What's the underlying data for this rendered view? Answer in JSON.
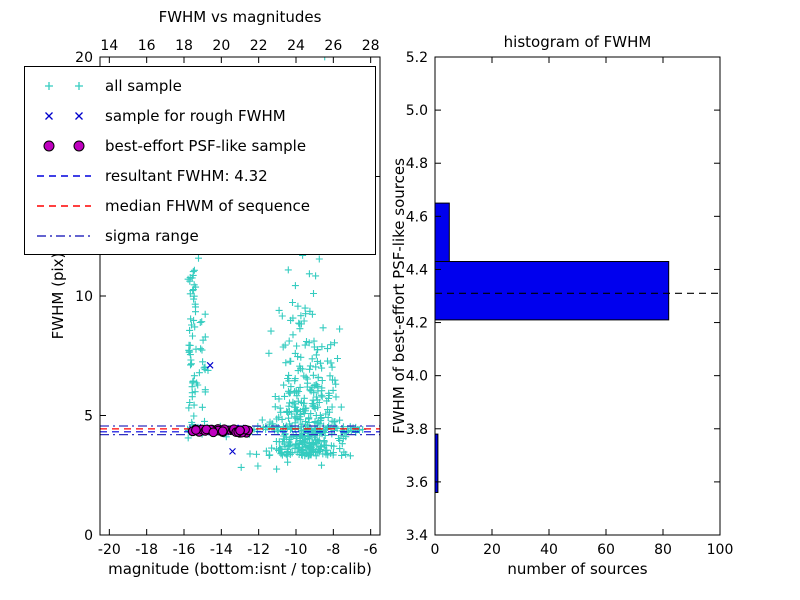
{
  "figure": {
    "background": "#ffffff"
  },
  "chart_data": [
    {
      "type": "scatter",
      "title": "FWHM vs magnitudes",
      "xlabel": "magnitude (bottom:isnt / top:calib)",
      "ylabel": "FWHM (pix)",
      "xlim": [
        -20.5,
        -5.5
      ],
      "ylim": [
        0,
        20
      ],
      "top_xlim": [
        13.5,
        28.5
      ],
      "xticks": [
        -20,
        -18,
        -16,
        -14,
        -12,
        -10,
        -8,
        -6
      ],
      "top_xticks": [
        14,
        16,
        18,
        20,
        22,
        24,
        26,
        28
      ],
      "yticks": [
        0,
        5,
        10,
        15,
        20
      ],
      "grid": false,
      "legend_position": "upper left",
      "series": [
        {
          "name": "all sample",
          "marker": "plus",
          "color": "#35ccc0",
          "clusters": [
            {
              "n": 380,
              "x": {
                "dist": "normal",
                "mu": -9.4,
                "sigma": 0.85,
                "clip": [
                  -12.3,
                  -6.3
                ]
              },
              "y": {
                "dist": "exp",
                "min": 3.3,
                "scale": 2.1,
                "clip": [
                  3.2,
                  13.8
                ]
              }
            },
            {
              "n": 26,
              "x": {
                "dist": "normal",
                "mu": -9.2,
                "sigma": 1.1,
                "clip": [
                  -12,
                  -6.5
                ]
              },
              "y": {
                "dist": "uniform",
                "min": 13.5,
                "max": 20.3
              }
            },
            {
              "n": 55,
              "x": {
                "dist": "normal",
                "mu": -15.55,
                "sigma": 0.13
              },
              "y": {
                "dist": "uniform",
                "min": 3.9,
                "max": 11.6
              }
            },
            {
              "n": 16,
              "x": {
                "dist": "normal",
                "mu": -14.9,
                "sigma": 0.1
              },
              "y": {
                "dist": "uniform",
                "min": 4.4,
                "max": 9.4
              }
            },
            {
              "n": 90,
              "x": {
                "dist": "uniform",
                "min": -15.9,
                "max": -6.4
              },
              "y": {
                "dist": "normal",
                "mu": 4.4,
                "sigma": 0.1
              }
            },
            {
              "n": 10,
              "x": {
                "dist": "uniform",
                "min": -13.5,
                "max": -7.0
              },
              "y": {
                "dist": "uniform",
                "min": 2.6,
                "max": 3.4
              }
            }
          ]
        },
        {
          "name": "sample for rough FWHM",
          "marker": "x",
          "color": "#0000cc",
          "clusters": [
            {
              "n": 16,
              "x": {
                "dist": "uniform",
                "min": -15.7,
                "max": -12.4
              },
              "y": {
                "dist": "normal",
                "mu": 4.42,
                "sigma": 0.09
              }
            }
          ],
          "points": [
            [
              -14.6,
              7.1
            ],
            [
              -13.4,
              3.5
            ]
          ]
        },
        {
          "name": "best-effort PSF-like sample",
          "marker": "circle",
          "color": "#bf00bf",
          "edge": "#000000",
          "clusters": [
            {
              "n": 30,
              "x": {
                "dist": "uniform",
                "min": -15.6,
                "max": -12.5
              },
              "y": {
                "dist": "normal",
                "mu": 4.38,
                "sigma": 0.05
              }
            }
          ]
        }
      ],
      "hlines": [
        {
          "y": 4.32,
          "style": "dashed",
          "color": "#0000dd",
          "label": "resultant FWHM: 4.32"
        },
        {
          "y": 4.44,
          "style": "dashed",
          "color": "#ff0000",
          "label": "median FHWM of sequence"
        },
        {
          "y": 4.56,
          "style": "dashdot",
          "color": "#3030c0",
          "label": "sigma range"
        },
        {
          "y": 4.2,
          "style": "dashdot",
          "color": "#3030c0",
          "label": ""
        }
      ],
      "legend": [
        {
          "label": "all sample",
          "marker": "plus",
          "color": "#35ccc0"
        },
        {
          "label": "sample for rough FWHM",
          "marker": "x",
          "color": "#0000cc"
        },
        {
          "label": "best-effort PSF-like sample",
          "marker": "circle",
          "color": "#bf00bf"
        },
        {
          "label": "resultant FWHM: 4.32",
          "marker": "dashed",
          "color": "#0000dd"
        },
        {
          "label": "median FHWM of sequence",
          "marker": "dashed",
          "color": "#ff0000"
        },
        {
          "label": "sigma range",
          "marker": "dashdot",
          "color": "#3030c0"
        }
      ]
    },
    {
      "type": "bar",
      "orientation": "horizontal",
      "title": "histogram of FWHM",
      "xlabel": "number of sources",
      "ylabel": "FWHM of best-effort PSF-like sources",
      "xlim": [
        0,
        100
      ],
      "ylim": [
        3.4,
        5.2
      ],
      "xticks": [
        0,
        20,
        40,
        60,
        80,
        100
      ],
      "yticks": [
        3.4,
        3.6,
        3.8,
        4.0,
        4.2,
        4.4,
        4.6,
        4.8,
        5.0,
        5.2
      ],
      "ytick_decimals": 1,
      "bar_color": "#0000ee",
      "bar_edge": "#000000",
      "bars": [
        {
          "y_from": 3.56,
          "y_to": 3.78,
          "count": 1
        },
        {
          "y_from": 4.21,
          "y_to": 4.43,
          "count": 82
        },
        {
          "y_from": 4.43,
          "y_to": 4.65,
          "count": 5
        }
      ],
      "hline": {
        "y": 4.31,
        "style": "dashed",
        "color": "#000000"
      }
    }
  ]
}
